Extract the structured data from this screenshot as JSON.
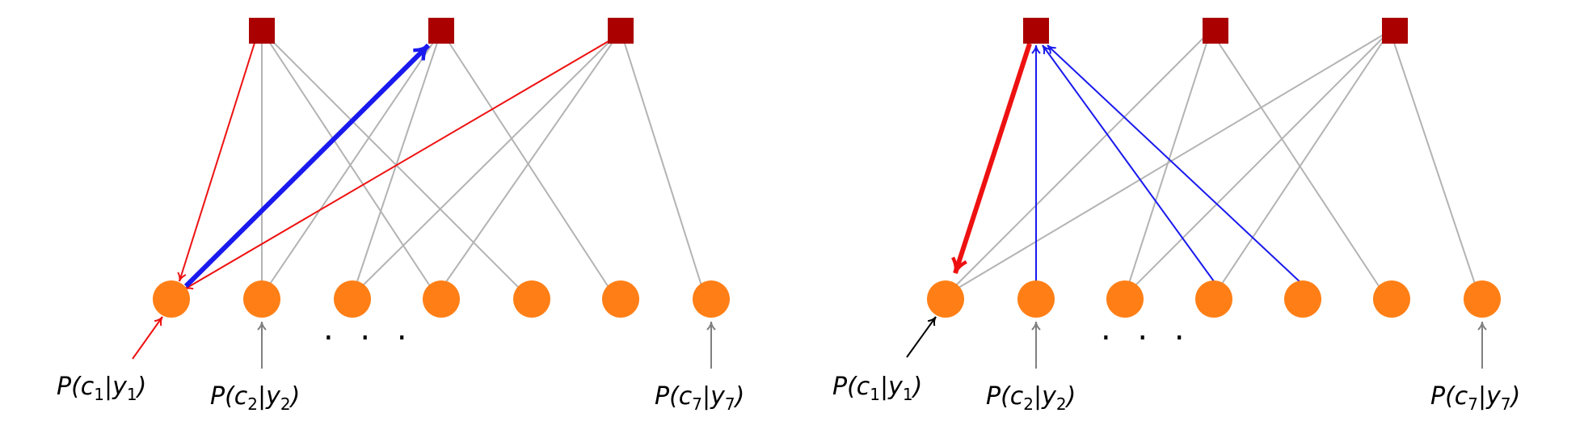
{
  "panels": [
    {
      "name": "left",
      "factors": 3,
      "variables": 7,
      "labels": [
        {
          "var": "c",
          "idx": "1",
          "cond": "y",
          "cidx": "1",
          "text": "P(c1|y1)"
        },
        {
          "var": "c",
          "idx": "2",
          "cond": "y",
          "cidx": "2",
          "text": "P(c2|y2)"
        },
        {
          "var": "c",
          "idx": "7",
          "cond": "y",
          "cidx": "7",
          "text": "P(c7|y7)"
        }
      ],
      "ellipsis": ". . ."
    },
    {
      "name": "right",
      "factors": 3,
      "variables": 7,
      "labels": [
        {
          "var": "c",
          "idx": "1",
          "cond": "y",
          "cidx": "1",
          "text": "P(c1|y1)"
        },
        {
          "var": "c",
          "idx": "2",
          "cond": "y",
          "cidx": "2",
          "text": "P(c2|y2)"
        },
        {
          "var": "c",
          "idx": "7",
          "cond": "y",
          "cidx": "7",
          "text": "P(c7|y7)"
        }
      ],
      "ellipsis": ". . ."
    }
  ],
  "colors": {
    "factor": "#aa0000",
    "variable": "#ff7f16",
    "edge": "#b3b3b3",
    "message_red": "#ee1111",
    "message_blue": "#1a1aee",
    "input_arrow": "#808080"
  },
  "legend": {
    "factor_icon": "square-node-icon",
    "variable_icon": "circle-node-icon"
  }
}
